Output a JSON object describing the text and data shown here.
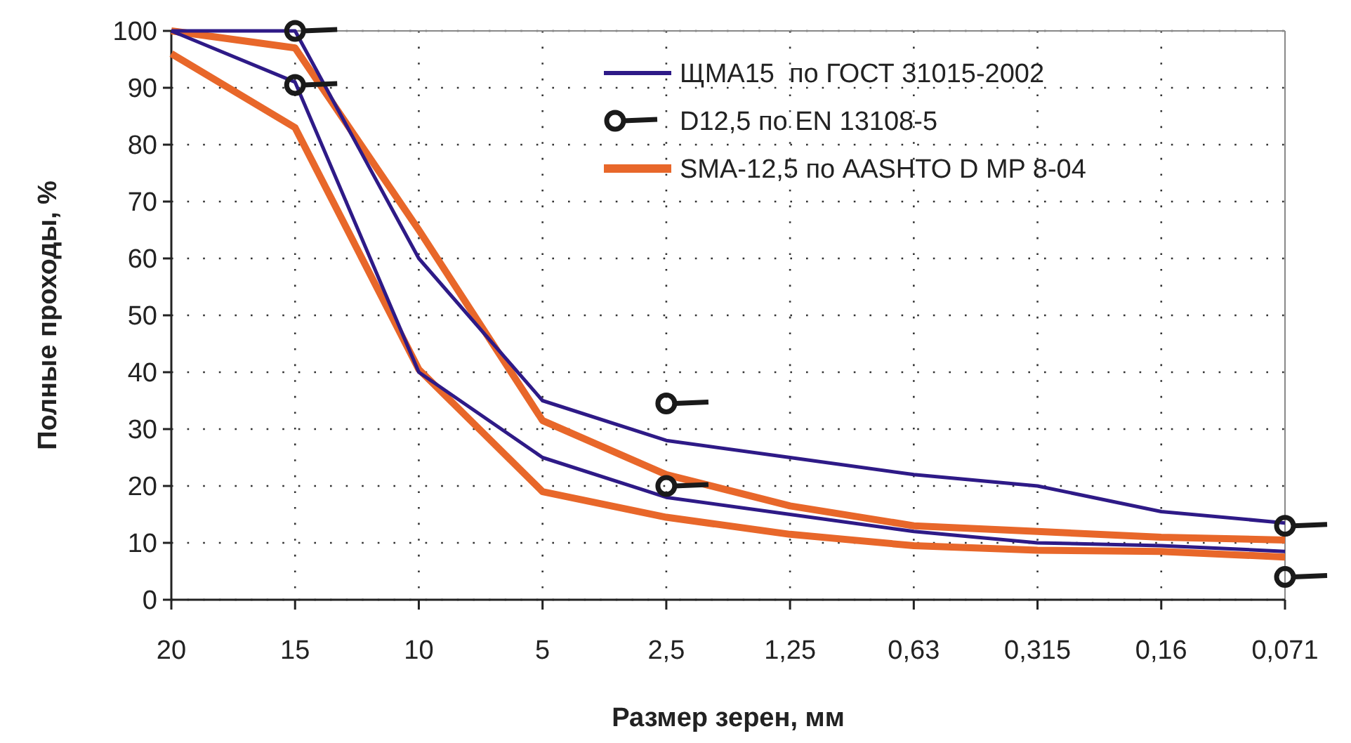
{
  "chart_data": {
    "type": "line",
    "xlabel": "Размер зерен, мм",
    "ylabel": "Полные проходы, %",
    "categories": [
      "20",
      "15",
      "10",
      "5",
      "2,5",
      "1,25",
      "0,63",
      "0,315",
      "0,16",
      "0,071"
    ],
    "ylim": [
      0,
      100
    ],
    "yticks": [
      0,
      10,
      20,
      30,
      40,
      50,
      60,
      70,
      80,
      90,
      100
    ],
    "grid": true,
    "legend": "top right",
    "line_style": "solid",
    "series": [
      {
        "name": "ЩМА15  по ГОСТ 31015-2002",
        "color": "#2e1a87",
        "values": [
          100,
          100,
          60,
          35,
          28,
          25,
          22,
          20,
          15.5,
          13.5
        ]
      },
      {
        "color": "#2e1a87",
        "values": [
          100,
          91,
          40,
          25,
          18,
          15,
          12,
          10,
          9.5,
          8.5
        ]
      },
      {
        "name": "D12,5 по EN 13108-5",
        "type": "scatter",
        "marker": "circle",
        "color": "#1a1a1a",
        "x": [
          "15",
          "15",
          "2,5",
          "2,5",
          "0,071",
          "0,071"
        ],
        "values": [
          100,
          90.5,
          34.5,
          20,
          13,
          4
        ]
      },
      {
        "name": "SMA-12,5 по AASHTO D MP 8-04",
        "color": "#e8672a",
        "values": [
          100,
          97,
          65,
          31.5,
          22,
          16.5,
          13,
          12,
          11,
          10.5
        ]
      },
      {
        "color": "#e8672a",
        "values": [
          96,
          83,
          40.5,
          19,
          14.5,
          11.5,
          9.5,
          8.7,
          8.5,
          7.5
        ]
      }
    ]
  }
}
